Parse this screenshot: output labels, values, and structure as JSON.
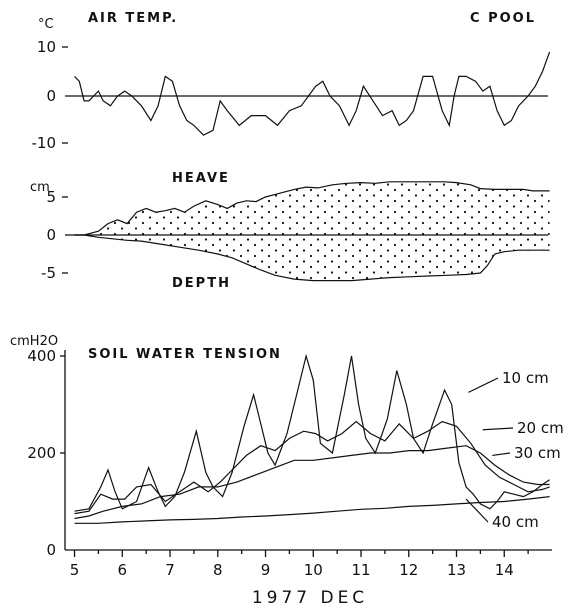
{
  "figure_title": "C POOL",
  "chart_data": [
    {
      "type": "line",
      "title": "AIR TEMP.",
      "ylabel": "°C",
      "ylim": [
        -12,
        12
      ],
      "yticks": [
        "10",
        "0",
        "-10"
      ],
      "series": [
        {
          "name": "",
          "x": [
            5.0,
            5.1,
            5.2,
            5.3,
            5.5,
            5.6,
            5.75,
            5.9,
            6.05,
            6.2,
            6.4,
            6.6,
            6.75,
            6.9,
            7.05,
            7.2,
            7.35,
            7.5,
            7.7,
            7.9,
            8.05,
            8.2,
            8.45,
            8.7,
            9.0,
            9.25,
            9.5,
            9.75,
            9.9,
            10.05,
            10.2,
            10.35,
            10.55,
            10.75,
            10.9,
            11.05,
            11.25,
            11.45,
            11.65,
            11.8,
            11.95,
            12.1,
            12.3,
            12.5,
            12.7,
            12.85,
            12.95,
            13.05,
            13.2,
            13.4,
            13.55,
            13.7,
            13.85,
            14.0,
            14.15,
            14.3,
            14.5,
            14.65,
            14.8,
            14.95
          ],
          "values": [
            4,
            3,
            -1,
            -1,
            1,
            -1,
            -2,
            0,
            1,
            0,
            -2,
            -5,
            -2,
            4,
            3,
            -2,
            -5,
            -6,
            -8,
            -7,
            -1,
            -3,
            -6,
            -4,
            -4,
            -6,
            -3,
            -2,
            0,
            2,
            3,
            0,
            -2,
            -6,
            -3,
            2,
            -1,
            -4,
            -3,
            -6,
            -5,
            -3,
            4,
            4,
            -3,
            -6,
            0,
            4,
            4,
            3,
            1,
            2,
            -3,
            -6,
            -5,
            -2,
            0,
            2,
            5,
            9
          ]
        }
      ]
    },
    {
      "type": "area",
      "title": "HEAVE",
      "ylabel": "cm",
      "ylim": [
        -7,
        8
      ],
      "yticks": [
        "5",
        "0",
        "-5"
      ],
      "annotations": [
        "HEAVE",
        "DEPTH"
      ],
      "series": [
        {
          "name": "HEAVE",
          "x": [
            5.0,
            5.2,
            5.5,
            5.7,
            5.9,
            6.1,
            6.3,
            6.5,
            6.7,
            6.9,
            7.1,
            7.3,
            7.5,
            7.75,
            8.0,
            8.2,
            8.4,
            8.6,
            8.8,
            9.0,
            9.3,
            9.6,
            9.85,
            10.1,
            10.4,
            10.7,
            11.0,
            11.3,
            11.6,
            11.9,
            12.2,
            12.5,
            12.75,
            13.0,
            13.3,
            13.5,
            13.8,
            14.1,
            14.4,
            14.6,
            14.8,
            14.95
          ],
          "values": [
            0,
            0,
            0.5,
            1.5,
            2.0,
            1.5,
            3.0,
            3.5,
            3.0,
            3.2,
            3.5,
            3.0,
            3.8,
            4.5,
            4.0,
            3.5,
            4.2,
            4.5,
            4.4,
            5.0,
            5.5,
            6.0,
            6.3,
            6.2,
            6.6,
            6.8,
            6.9,
            6.8,
            7.0,
            7.0,
            7.0,
            7.0,
            7.0,
            6.9,
            6.6,
            6.1,
            6.0,
            6.0,
            6.0,
            5.8,
            5.8,
            5.8
          ]
        },
        {
          "name": "DEPTH",
          "x": [
            5.0,
            5.2,
            5.5,
            5.8,
            6.1,
            6.4,
            6.8,
            7.2,
            7.6,
            8.0,
            8.3,
            8.6,
            8.9,
            9.2,
            9.6,
            10.0,
            10.4,
            10.8,
            11.2,
            11.6,
            12.0,
            12.4,
            12.8,
            13.2,
            13.5,
            13.65,
            13.8,
            14.0,
            14.3,
            14.6,
            14.8,
            14.95
          ],
          "values": [
            0,
            0,
            -0.3,
            -0.5,
            -0.7,
            -0.8,
            -1.2,
            -1.6,
            -2.0,
            -2.5,
            -3.0,
            -3.8,
            -4.6,
            -5.3,
            -5.8,
            -6.0,
            -6.0,
            -6.0,
            -5.8,
            -5.6,
            -5.5,
            -5.4,
            -5.3,
            -5.2,
            -5.0,
            -4.0,
            -2.5,
            -2.2,
            -2.0,
            -2.0,
            -2.0,
            -2.0
          ]
        }
      ]
    },
    {
      "type": "line",
      "title": "SOIL WATER TENSION",
      "ylabel": "cmH2O",
      "ylim": [
        0,
        420
      ],
      "yticks": [
        "400",
        "200",
        "0"
      ],
      "xlabel": "1977 DEC",
      "xticks": [
        "5",
        "6",
        "7",
        "8",
        "9",
        "10",
        "11",
        "12",
        "13",
        "14"
      ],
      "xlim": [
        4.8,
        15.0
      ],
      "series": [
        {
          "name": "10 cm",
          "x": [
            5.0,
            5.3,
            5.55,
            5.7,
            5.85,
            6.0,
            6.3,
            6.55,
            6.75,
            6.9,
            7.1,
            7.3,
            7.55,
            7.75,
            7.9,
            8.1,
            8.3,
            8.55,
            8.75,
            8.9,
            9.05,
            9.2,
            9.45,
            9.7,
            9.85,
            10.0,
            10.15,
            10.4,
            10.65,
            10.8,
            10.95,
            11.1,
            11.3,
            11.55,
            11.75,
            11.95,
            12.1,
            12.3,
            12.5,
            12.75,
            12.9,
            13.05,
            13.2,
            13.35,
            13.5,
            13.7,
            13.85,
            14.0,
            14.2,
            14.4,
            14.6,
            14.8,
            14.95
          ],
          "values": [
            80,
            85,
            130,
            165,
            120,
            85,
            100,
            170,
            120,
            90,
            110,
            160,
            245,
            160,
            130,
            110,
            160,
            255,
            320,
            260,
            200,
            175,
            240,
            340,
            400,
            350,
            220,
            200,
            320,
            400,
            300,
            230,
            200,
            270,
            370,
            300,
            230,
            200,
            260,
            330,
            300,
            180,
            130,
            115,
            95,
            85,
            100,
            120,
            115,
            110,
            120,
            135,
            145
          ]
        },
        {
          "name": "20 cm",
          "x": [
            5.0,
            5.3,
            5.55,
            5.8,
            6.05,
            6.3,
            6.6,
            6.9,
            7.2,
            7.5,
            7.8,
            8.05,
            8.3,
            8.6,
            8.9,
            9.2,
            9.5,
            9.8,
            10.05,
            10.3,
            10.6,
            10.9,
            11.2,
            11.5,
            11.8,
            12.1,
            12.4,
            12.7,
            13.0,
            13.3,
            13.6,
            13.9,
            14.2,
            14.5,
            14.8,
            14.95
          ],
          "values": [
            75,
            80,
            115,
            105,
            105,
            130,
            135,
            100,
            120,
            140,
            120,
            140,
            165,
            195,
            215,
            205,
            230,
            245,
            240,
            225,
            240,
            265,
            240,
            225,
            260,
            230,
            245,
            265,
            255,
            220,
            175,
            150,
            135,
            120,
            125,
            130
          ]
        },
        {
          "name": "30 cm",
          "x": [
            5.0,
            5.3,
            5.6,
            6.0,
            6.4,
            6.8,
            7.2,
            7.6,
            8.0,
            8.4,
            8.8,
            9.2,
            9.6,
            10.0,
            10.4,
            10.8,
            11.2,
            11.6,
            12.0,
            12.4,
            12.8,
            13.2,
            13.5,
            13.8,
            14.1,
            14.4,
            14.7,
            14.95
          ],
          "values": [
            65,
            70,
            80,
            90,
            95,
            110,
            115,
            130,
            130,
            140,
            155,
            170,
            185,
            185,
            190,
            195,
            200,
            200,
            205,
            205,
            210,
            215,
            200,
            175,
            155,
            140,
            135,
            135
          ]
        },
        {
          "name": "40 cm",
          "x": [
            5.0,
            5.5,
            6.0,
            6.5,
            7.0,
            7.5,
            8.0,
            8.5,
            9.0,
            9.5,
            10.0,
            10.5,
            11.0,
            11.5,
            12.0,
            12.5,
            13.0,
            13.5,
            14.0,
            14.5,
            14.95
          ],
          "values": [
            55,
            55,
            58,
            60,
            62,
            63,
            65,
            68,
            70,
            73,
            76,
            80,
            84,
            86,
            90,
            92,
            95,
            98,
            100,
            105,
            110
          ]
        }
      ]
    }
  ]
}
